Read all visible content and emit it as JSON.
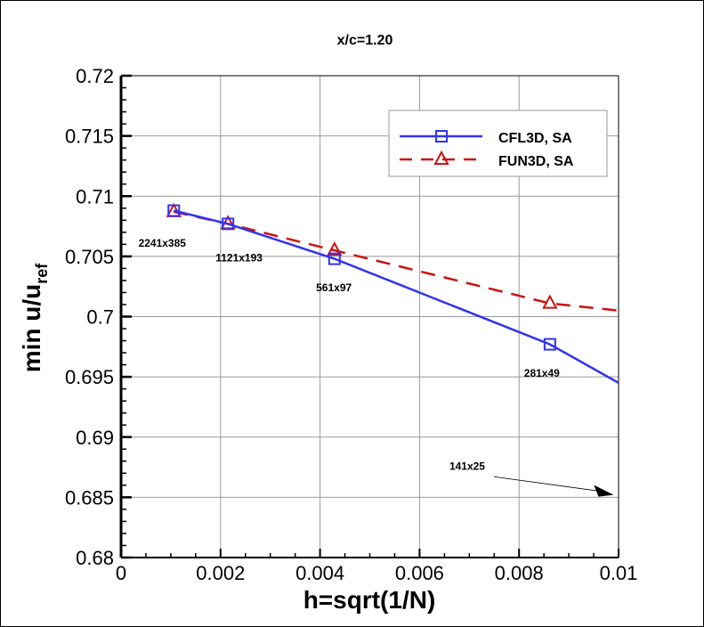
{
  "chart_data": {
    "type": "line",
    "title": "x/c=1.20",
    "xlabel": "h=sqrt(1/N)",
    "ylabel": {
      "main": "min u/u",
      "subscript": "ref"
    },
    "xlim": [
      0,
      0.01
    ],
    "ylim": [
      0.68,
      0.72
    ],
    "xticks": [
      "0",
      "0.002",
      "0.004",
      "0.006",
      "0.008",
      "0.01"
    ],
    "yticks": [
      "0.68",
      "0.685",
      "0.69",
      "0.695",
      "0.7",
      "0.705",
      "0.71",
      "0.715",
      "0.72"
    ],
    "grid": true,
    "legend_position": "top-right",
    "series": [
      {
        "name": "CFL3D, SA",
        "color": "#3333ee",
        "style": "solid",
        "marker": "square",
        "x": [
          0.00106,
          0.00215,
          0.00429,
          0.00862,
          0.01
        ],
        "y": [
          0.7088,
          0.7077,
          0.7048,
          0.6977,
          0.6945
        ],
        "marked": [
          true,
          true,
          true,
          true,
          false
        ]
      },
      {
        "name": "FUN3D, SA",
        "color": "#cc1111",
        "style": "dashed",
        "marker": "triangle",
        "x": [
          0.00106,
          0.00215,
          0.00429,
          0.00862,
          0.01
        ],
        "y": [
          0.7087,
          0.7077,
          0.7055,
          0.7011,
          0.7005
        ],
        "marked": [
          true,
          true,
          true,
          true,
          false
        ]
      }
    ],
    "annotations": [
      {
        "text": "2241x385",
        "x": 0.00035,
        "y": 0.7058
      },
      {
        "text": "1121x193",
        "x": 0.0019,
        "y": 0.7046
      },
      {
        "text": "561x97",
        "x": 0.00392,
        "y": 0.7021
      },
      {
        "text": "281x49",
        "x": 0.0081,
        "y": 0.695
      },
      {
        "text": "141x25",
        "x": 0.0066,
        "y": 0.6873,
        "arrow_to": [
          0.0099,
          0.6852
        ]
      }
    ]
  }
}
